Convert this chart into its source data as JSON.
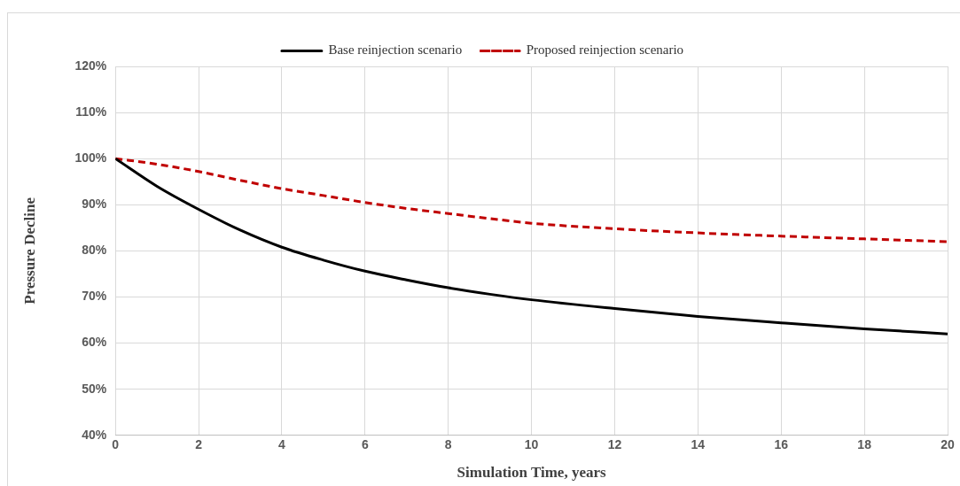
{
  "chart_data": {
    "type": "line",
    "xlabel": "Simulation Time, years",
    "ylabel": "Pressure Decline",
    "x": [
      0,
      1,
      2,
      3,
      4,
      5,
      6,
      7,
      8,
      9,
      10,
      12,
      14,
      16,
      18,
      20
    ],
    "series": [
      {
        "name": "Base reinjection scenario",
        "color": "#000000",
        "line_style": "solid",
        "values": [
          100,
          94,
          89,
          84.5,
          80.8,
          78,
          75.6,
          73.7,
          72,
          70.6,
          69.4,
          67.5,
          65.8,
          64.4,
          63.1,
          62
        ]
      },
      {
        "name": "Proposed reinjection scenario",
        "color": "#c00000",
        "line_style": "dashed",
        "values": [
          100,
          98.8,
          97.2,
          95.3,
          93.5,
          92,
          90.5,
          89.2,
          88.1,
          87,
          86,
          84.8,
          83.9,
          83.2,
          82.6,
          82
        ]
      }
    ],
    "xlim": [
      0,
      20
    ],
    "xticks": [
      0,
      2,
      4,
      6,
      8,
      10,
      12,
      14,
      16,
      18,
      20
    ],
    "ylim": [
      40,
      120
    ],
    "yticks": [
      {
        "value": 40,
        "label": "40%"
      },
      {
        "value": 50,
        "label": "50%"
      },
      {
        "value": 60,
        "label": "60%"
      },
      {
        "value": 70,
        "label": "70%"
      },
      {
        "value": 80,
        "label": "80%"
      },
      {
        "value": 90,
        "label": "90%"
      },
      {
        "value": 100,
        "label": "100%"
      },
      {
        "value": 110,
        "label": "110%"
      },
      {
        "value": 120,
        "label": "120%"
      }
    ],
    "grid": true,
    "legend": "top",
    "marker": "none"
  }
}
